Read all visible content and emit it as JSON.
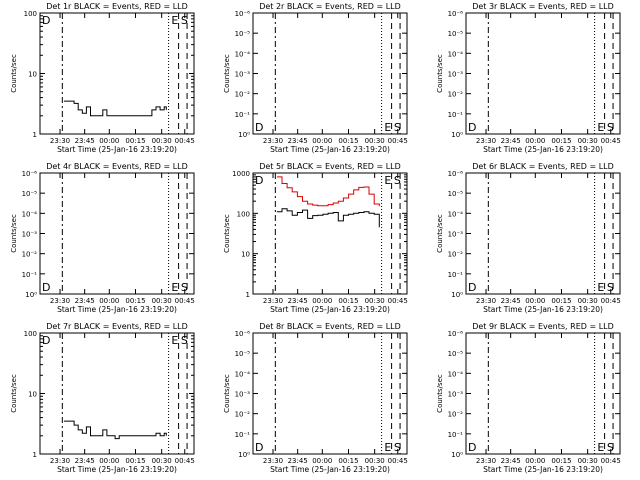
{
  "colors": {
    "background": "#ffffff",
    "events": "#000000",
    "lld": "#dd0000"
  },
  "chart_data": [
    {
      "type": "line",
      "title": "Det 1r BLACK = Events, RED = LLD",
      "xlabel": "Start Time (25-Jan-16 23:19:20)",
      "ylabel": "Counts/sec",
      "y_scale": "log",
      "ylim": [
        1,
        100
      ],
      "y_ticks": [
        "1",
        "10",
        "100"
      ],
      "x_ticks": [
        "23:30",
        "23:45",
        "00:00",
        "00:15",
        "00:30",
        "00:45"
      ],
      "markers": [
        "D",
        "E",
        "S"
      ],
      "series": [
        {
          "name": "Events",
          "color": "#000000",
          "x": [
            0.0,
            0.05,
            0.1,
            0.14,
            0.18,
            0.22,
            0.26,
            0.3,
            0.34,
            0.38,
            0.42,
            0.46,
            0.5,
            0.54,
            0.58,
            0.62,
            0.66,
            0.7,
            0.74,
            0.78,
            0.82,
            0.86,
            0.9,
            0.94,
            0.98,
            1.0
          ],
          "y": [
            3.5,
            3.5,
            3.2,
            2.5,
            2.2,
            2.8,
            2.0,
            2.0,
            2.0,
            2.5,
            2.0,
            2.0,
            2.0,
            2.0,
            2.0,
            2.0,
            2.0,
            2.0,
            2.0,
            2.0,
            2.0,
            2.5,
            2.8,
            2.5,
            2.8,
            2.5
          ]
        }
      ]
    },
    {
      "type": "line",
      "title": "Det 2r BLACK = Events, RED = LLD",
      "xlabel": "Start Time (25-Jan-16 23:19:20)",
      "ylabel": "Counts/sec",
      "y_scale": "log",
      "y_ticks": [
        "10⁰",
        "10⁻¹",
        "10⁻²",
        "10⁻³",
        "10⁻⁴",
        "10⁻⁵",
        "10⁻⁶"
      ],
      "x_ticks": [
        "23:30",
        "23:45",
        "00:00",
        "00:15",
        "00:30",
        "00:45"
      ],
      "markers": [
        "D",
        "E",
        "S"
      ],
      "series": []
    },
    {
      "type": "line",
      "title": "Det 3r BLACK = Events, RED = LLD",
      "xlabel": "Start Time (25-Jan-16 23:19:20)",
      "ylabel": "Counts/sec",
      "y_scale": "log",
      "y_ticks": [
        "10⁰",
        "10⁻¹",
        "10⁻²",
        "10⁻³",
        "10⁻⁴",
        "10⁻⁵",
        "10⁻⁶"
      ],
      "x_ticks": [
        "23:30",
        "23:45",
        "00:00",
        "00:15",
        "00:30",
        "00:45"
      ],
      "markers": [
        "D",
        "E",
        "S"
      ],
      "series": []
    },
    {
      "type": "line",
      "title": "Det 4r BLACK = Events, RED = LLD",
      "xlabel": "Start Time (25-Jan-16 23:19:20)",
      "ylabel": "Counts/sec",
      "y_scale": "log",
      "y_ticks": [
        "10⁰",
        "10⁻¹",
        "10⁻²",
        "10⁻³",
        "10⁻⁴",
        "10⁻⁵",
        "10⁻⁶"
      ],
      "x_ticks": [
        "23:30",
        "23:45",
        "00:00",
        "00:15",
        "00:30",
        "00:45"
      ],
      "markers": [
        "D",
        "E",
        "S"
      ],
      "series": []
    },
    {
      "type": "line",
      "title": "Det 5r BLACK = Events, RED = LLD",
      "xlabel": "Start Time (25-Jan-16 23:19:20)",
      "ylabel": "Counts/sec",
      "y_scale": "log",
      "ylim": [
        1,
        1000
      ],
      "y_ticks": [
        "1",
        "10",
        "100",
        "1000"
      ],
      "x_ticks": [
        "23:30",
        "23:45",
        "00:00",
        "00:15",
        "00:30",
        "00:45"
      ],
      "markers": [
        "D",
        "E",
        "S"
      ],
      "series": [
        {
          "name": "LLD",
          "color": "#dd0000",
          "x": [
            0.0,
            0.05,
            0.1,
            0.15,
            0.2,
            0.25,
            0.3,
            0.35,
            0.4,
            0.45,
            0.5,
            0.55,
            0.6,
            0.65,
            0.7,
            0.75,
            0.8,
            0.85,
            0.9,
            0.95,
            1.0
          ],
          "y": [
            800,
            550,
            430,
            340,
            260,
            200,
            170,
            160,
            155,
            155,
            165,
            180,
            200,
            240,
            300,
            380,
            440,
            450,
            300,
            170,
            150
          ]
        },
        {
          "name": "Events",
          "color": "#000000",
          "x": [
            0.0,
            0.05,
            0.1,
            0.15,
            0.2,
            0.25,
            0.3,
            0.35,
            0.4,
            0.45,
            0.5,
            0.55,
            0.6,
            0.65,
            0.7,
            0.75,
            0.8,
            0.85,
            0.9,
            0.95,
            1.0
          ],
          "y": [
            110,
            130,
            115,
            90,
            105,
            120,
            75,
            88,
            90,
            95,
            100,
            105,
            65,
            90,
            95,
            100,
            105,
            110,
            100,
            95,
            45
          ]
        }
      ]
    },
    {
      "type": "line",
      "title": "Det 6r BLACK = Events, RED = LLD",
      "xlabel": "Start Time (25-Jan-16 23:19:20)",
      "ylabel": "Counts/sec",
      "y_scale": "log",
      "y_ticks": [
        "10⁰",
        "10⁻¹",
        "10⁻²",
        "10⁻³",
        "10⁻⁴",
        "10⁻⁵",
        "10⁻⁶"
      ],
      "x_ticks": [
        "23:30",
        "23:45",
        "00:00",
        "00:15",
        "00:30",
        "00:45"
      ],
      "markers": [
        "D",
        "E",
        "S"
      ],
      "series": []
    },
    {
      "type": "line",
      "title": "Det 7r BLACK = Events, RED = LLD",
      "xlabel": "Start Time (25-Jan-16 23:19:20)",
      "ylabel": "Counts/sec",
      "y_scale": "log",
      "ylim": [
        1,
        100
      ],
      "y_ticks": [
        "1",
        "10",
        "100"
      ],
      "x_ticks": [
        "23:30",
        "23:45",
        "00:00",
        "00:15",
        "00:30",
        "00:45"
      ],
      "markers": [
        "D",
        "E",
        "S"
      ],
      "series": [
        {
          "name": "Events",
          "color": "#000000",
          "x": [
            0.0,
            0.05,
            0.1,
            0.14,
            0.18,
            0.22,
            0.26,
            0.3,
            0.34,
            0.38,
            0.42,
            0.46,
            0.5,
            0.54,
            0.58,
            0.62,
            0.66,
            0.7,
            0.74,
            0.78,
            0.82,
            0.86,
            0.9,
            0.94,
            0.98,
            1.0
          ],
          "y": [
            3.5,
            3.5,
            3.0,
            2.5,
            2.2,
            2.8,
            2.0,
            2.0,
            2.0,
            2.5,
            2.0,
            2.0,
            1.8,
            2.0,
            2.0,
            2.0,
            2.0,
            2.0,
            2.0,
            2.0,
            2.0,
            2.0,
            2.2,
            2.0,
            2.2,
            2.0
          ]
        }
      ]
    },
    {
      "type": "line",
      "title": "Det 8r BLACK = Events, RED = LLD",
      "xlabel": "Start Time (25-Jan-16 23:19:20)",
      "ylabel": "Counts/sec",
      "y_scale": "log",
      "y_ticks": [
        "10⁰",
        "10⁻¹",
        "10⁻²",
        "10⁻³",
        "10⁻⁴",
        "10⁻⁵",
        "10⁻⁶"
      ],
      "x_ticks": [
        "23:30",
        "23:45",
        "00:00",
        "00:15",
        "00:30",
        "00:45"
      ],
      "markers": [
        "D",
        "E",
        "S"
      ],
      "series": []
    },
    {
      "type": "line",
      "title": "Det 9r BLACK = Events, RED = LLD",
      "xlabel": "Start Time (25-Jan-16 23:19:20)",
      "ylabel": "Counts/sec",
      "y_scale": "log",
      "y_ticks": [
        "10⁰",
        "10⁻¹",
        "10⁻²",
        "10⁻³",
        "10⁻⁴",
        "10⁻⁵",
        "10⁻⁶"
      ],
      "x_ticks": [
        "23:30",
        "23:45",
        "00:00",
        "00:15",
        "00:30",
        "00:45"
      ],
      "markers": [
        "D",
        "E",
        "S"
      ],
      "series": []
    }
  ]
}
